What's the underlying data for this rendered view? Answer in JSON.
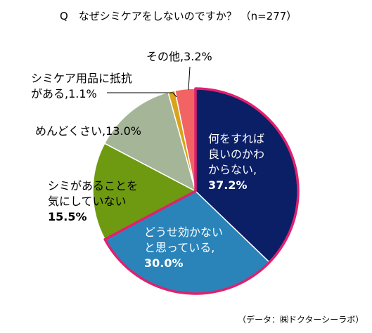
{
  "title": "Q　なぜシミケアをしないのですか？ （n=277）",
  "source": "（データ：㈱ドクターシーラボ）",
  "chart_data": {
    "type": "pie",
    "title": "Q　なぜシミケアをしないのですか？ （n=277）",
    "n": 277,
    "unit": "%",
    "slices": [
      {
        "label": "何をすれば良いのかわからない",
        "value": 37.2,
        "color": "#0b1f66",
        "lines": [
          "何をすれば",
          "良いのかわ",
          "からない,"
        ],
        "value_text": "37.2%"
      },
      {
        "label": "どうせ効かないと思っている",
        "value": 30.0,
        "color": "#2a84ba",
        "lines": [
          "どうせ効かない",
          "と思っている,"
        ],
        "value_text": "30.0%"
      },
      {
        "label": "シミがあることを気にしていない",
        "value": 15.5,
        "color": "#6e9a12",
        "lines": [
          "シミがあることを",
          "気にしていない"
        ],
        "value_text": "15.5%"
      },
      {
        "label": "めんどくさい",
        "value": 13.0,
        "color": "#a5b597",
        "lines": [
          "めんどくさい,13.0%"
        ],
        "value_text": "13.0%"
      },
      {
        "label": "シミケア用品に抵抗がある",
        "value": 1.1,
        "color": "#d9a31b",
        "lines": [
          "シミケア用品に抵抗",
          "がある,1.1%"
        ],
        "value_text": "1.1%"
      },
      {
        "label": "その他",
        "value": 3.2,
        "color": "#f26464",
        "lines": [
          "その他,3.2%"
        ],
        "value_text": "3.2%"
      }
    ],
    "highlight_outline_color": "#e0206e"
  }
}
